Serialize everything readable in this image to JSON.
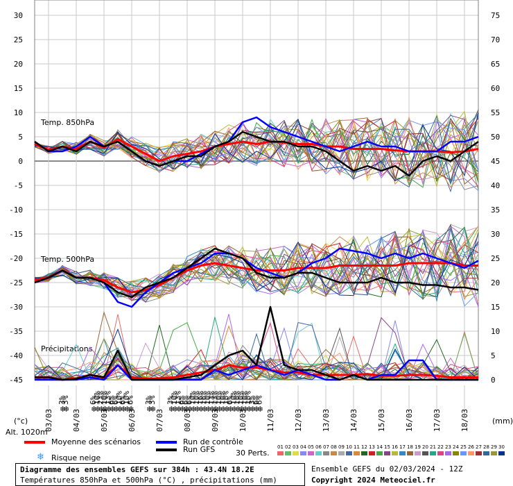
{
  "header": {
    "title_line1": "Diagramme des ensembles GEFS sur 384h : 43.4N 18.2E",
    "title_line2": "Températures 850hPa et 500hPa (°C) , précipitations (mm)",
    "run_info": "Ensemble GEFS du 02/03/2024 - 12Z",
    "copyright": "Copyright 2024 Meteociel.fr"
  },
  "labels": {
    "temp850": "Temp. 850hPa",
    "temp500": "Temp. 500hPa",
    "precip": "Précipitations",
    "unit_left": "(°c)",
    "unit_right": "(mm)",
    "altitude": "Alt. 1020m",
    "perts_label": "30 Perts."
  },
  "legend": {
    "mean": "Moyenne des scénarios",
    "control": "Run de contrôle",
    "gfs": "Run GFS",
    "snow": "Risque neige",
    "mean_color": "#ff0000",
    "control_color": "#0000ff",
    "gfs_color": "#000000"
  },
  "perturbations": {
    "numbers": [
      "01",
      "02",
      "03",
      "04",
      "05",
      "06",
      "07",
      "08",
      "09",
      "10",
      "11",
      "12",
      "13",
      "14",
      "15",
      "16",
      "17",
      "18",
      "19",
      "20",
      "21",
      "22",
      "23",
      "24",
      "25",
      "26",
      "27",
      "28",
      "29",
      "30"
    ],
    "colors": [
      "#ee6666",
      "#66bb66",
      "#dddd44",
      "#8888ee",
      "#cc66cc",
      "#66cccc",
      "#888888",
      "#cc8844",
      "#aaaaaa",
      "#4466aa",
      "#dd8833",
      "#226622",
      "#cc2222",
      "#44aa44",
      "#884488",
      "#bbbb33",
      "#3388cc",
      "#996633",
      "#cc99cc",
      "#555555",
      "#22aa88",
      "#dd4488",
      "#aa66ee",
      "#888800",
      "#6699ff",
      "#ff9966",
      "#993333",
      "#336699",
      "#999933",
      "#003399"
    ]
  },
  "axes": {
    "left_ticks": [
      "30",
      "25",
      "20",
      "15",
      "10",
      "5",
      "0",
      "-5",
      "-10",
      "-15",
      "-20",
      "-25",
      "-30",
      "-35",
      "-40",
      "-45"
    ],
    "right_ticks": [
      "75",
      "70",
      "65",
      "60",
      "55",
      "50",
      "45",
      "40",
      "35",
      "30",
      "25",
      "20",
      "15",
      "10",
      "5",
      "0"
    ],
    "dates": [
      "03/03",
      "04/03",
      "05/03",
      "06/03",
      "07/03",
      "08/03",
      "09/03",
      "10/03",
      "11/03",
      "12/03",
      "13/03",
      "14/03",
      "15/03",
      "16/03",
      "17/03",
      "18/03"
    ]
  },
  "snow_risk": {
    "pcts": [
      "3%",
      "3%",
      "6%",
      "10%",
      "23%",
      "10%",
      "13%",
      "6%",
      "6%",
      "10%",
      "6%",
      "10%",
      "6%",
      "3%",
      "3%",
      "3%",
      "10%",
      "13%",
      "6%",
      "6%",
      "6%",
      "10%",
      "10%",
      "16%",
      "16%",
      "10%",
      "13%",
      "13%",
      "10%",
      "10%",
      "10%",
      "6%",
      "10%",
      "10%",
      "10%",
      "10%",
      "10%",
      "3%",
      "6%",
      "6%"
    ]
  },
  "chart_data": {
    "type": "line",
    "title": "Diagramme des ensembles GEFS sur 384h : 43.4N 18.2E",
    "x_dates": [
      "03/03",
      "04/03",
      "05/03",
      "06/03",
      "07/03",
      "08/03",
      "09/03",
      "10/03",
      "11/03",
      "12/03",
      "13/03",
      "14/03",
      "15/03",
      "16/03",
      "17/03",
      "18/03"
    ],
    "left_axis": {
      "label": "(°c)",
      "range": [
        -45,
        30
      ]
    },
    "right_axis": {
      "label": "(mm)",
      "range": [
        0,
        75
      ]
    },
    "x_hours_range": [
      0,
      384
    ],
    "grid": true,
    "series": [
      {
        "name": "Moyenne des scénarios",
        "group": "Temp. 850hPa",
        "x_hours": [
          0,
          12,
          24,
          36,
          48,
          60,
          72,
          84,
          96,
          108,
          120,
          132,
          144,
          156,
          168,
          180,
          192,
          204,
          216,
          228,
          240,
          252,
          264,
          276,
          288,
          300,
          312,
          324,
          336,
          348,
          360,
          372,
          384
        ],
        "values": [
          3.5,
          2.3,
          3,
          2.5,
          4,
          2.8,
          4.5,
          3,
          1.5,
          0,
          1,
          1.5,
          2,
          3,
          3.5,
          4,
          3.5,
          4,
          3.8,
          3.5,
          3.5,
          3,
          3,
          2.5,
          2.5,
          2.5,
          2.2,
          2,
          2,
          2,
          1.8,
          2,
          2.5
        ]
      },
      {
        "name": "Run de contrôle",
        "group": "Temp. 850hPa",
        "x_hours": [
          0,
          12,
          24,
          36,
          48,
          60,
          72,
          84,
          96,
          108,
          120,
          132,
          144,
          156,
          168,
          180,
          192,
          204,
          216,
          228,
          240,
          252,
          264,
          276,
          288,
          300,
          312,
          324,
          336,
          348,
          360,
          372,
          384
        ],
        "values": [
          4,
          2,
          2,
          3,
          5,
          3,
          4,
          2,
          0,
          -1,
          0,
          0,
          1.5,
          3,
          4,
          8,
          9,
          7,
          6,
          5,
          4,
          3,
          2,
          3,
          4,
          3,
          3,
          2,
          2,
          2,
          4,
          4,
          5
        ]
      },
      {
        "name": "Run GFS",
        "group": "Temp. 850hPa",
        "x_hours": [
          0,
          12,
          24,
          36,
          48,
          60,
          72,
          84,
          96,
          108,
          120,
          132,
          144,
          156,
          168,
          180,
          192,
          204,
          216,
          228,
          240,
          252,
          264,
          276,
          288,
          300,
          312,
          324,
          336,
          348,
          360,
          372,
          384
        ],
        "values": [
          4,
          2,
          3,
          2,
          4,
          3,
          4,
          2,
          0,
          -1,
          0,
          1,
          1,
          3,
          4,
          6,
          5,
          4,
          4,
          3,
          3,
          2,
          0,
          -2,
          -1,
          -2,
          -1,
          -3,
          0,
          1,
          0,
          2,
          4
        ]
      },
      {
        "name": "Moyenne des scénarios",
        "group": "Temp. 500hPa",
        "x_hours": [
          0,
          12,
          24,
          36,
          48,
          60,
          72,
          84,
          96,
          108,
          120,
          132,
          144,
          156,
          168,
          180,
          192,
          204,
          216,
          228,
          240,
          252,
          264,
          276,
          288,
          300,
          312,
          324,
          336,
          348,
          360,
          372,
          384
        ],
        "values": [
          -24.5,
          -24,
          -22.5,
          -24,
          -24,
          -24.5,
          -26,
          -27,
          -26.5,
          -25.5,
          -24,
          -22.5,
          -21.5,
          -21,
          -21.5,
          -22,
          -22.5,
          -22.5,
          -22.5,
          -22,
          -22,
          -22,
          -21.5,
          -21.5,
          -21.5,
          -21.5,
          -21.5,
          -21,
          -21,
          -21,
          -21,
          -21.5,
          -21.5
        ]
      },
      {
        "name": "Run de contrôle",
        "group": "Temp. 500hPa",
        "x_hours": [
          0,
          12,
          24,
          36,
          48,
          60,
          72,
          84,
          96,
          108,
          120,
          132,
          144,
          156,
          168,
          180,
          192,
          204,
          216,
          228,
          240,
          252,
          264,
          276,
          288,
          300,
          312,
          324,
          336,
          348,
          360,
          372,
          384
        ],
        "values": [
          -25,
          -24,
          -22.5,
          -24,
          -24,
          -25,
          -29,
          -30,
          -27,
          -25,
          -23,
          -22,
          -21,
          -19,
          -19,
          -20,
          -22,
          -23,
          -24,
          -23,
          -21,
          -20,
          -18,
          -18.5,
          -19,
          -20,
          -19,
          -20,
          -19,
          -20,
          -21,
          -22,
          -20.5
        ]
      },
      {
        "name": "Run GFS",
        "group": "Temp. 500hPa",
        "x_hours": [
          0,
          12,
          24,
          36,
          48,
          60,
          72,
          84,
          96,
          108,
          120,
          132,
          144,
          156,
          168,
          180,
          192,
          204,
          216,
          228,
          240,
          252,
          264,
          276,
          288,
          300,
          312,
          324,
          336,
          348,
          360,
          372,
          384
        ],
        "values": [
          -25,
          -24,
          -22.5,
          -24,
          -24,
          -25,
          -27,
          -28,
          -26,
          -25,
          -24,
          -22,
          -20,
          -18,
          -19,
          -20,
          -23,
          -24,
          -24,
          -23,
          -23,
          -24,
          -25,
          -25,
          -25,
          -24,
          -25,
          -25,
          -25.5,
          -25.5,
          -26,
          -26,
          -26.5
        ]
      },
      {
        "name": "Moyenne des scénarios",
        "group": "Précipitations",
        "axis": "right",
        "x_hours": [
          0,
          12,
          24,
          36,
          48,
          60,
          72,
          84,
          96,
          108,
          120,
          132,
          144,
          156,
          168,
          180,
          192,
          204,
          216,
          228,
          240,
          252,
          264,
          276,
          288,
          300,
          312,
          324,
          336,
          348,
          360,
          372,
          384
        ],
        "values": [
          0.5,
          0.5,
          0,
          0.3,
          1,
          0.5,
          3,
          0.5,
          0.2,
          0.3,
          0.5,
          1,
          1.5,
          2,
          3,
          2.5,
          2.5,
          2,
          1.5,
          1.5,
          1,
          1,
          1,
          1,
          1.2,
          0.8,
          0.8,
          1,
          1,
          0.8,
          0.5,
          0.5,
          0.5
        ]
      },
      {
        "name": "Run de contrôle",
        "group": "Précipitations",
        "axis": "right",
        "x_hours": [
          0,
          12,
          24,
          36,
          48,
          60,
          72,
          84,
          96,
          108,
          120,
          132,
          144,
          156,
          168,
          180,
          192,
          204,
          216,
          228,
          240,
          252,
          264,
          276,
          288,
          300,
          312,
          324,
          336,
          348,
          360,
          372,
          384
        ],
        "values": [
          0,
          0,
          0,
          0,
          0.5,
          0,
          3,
          0,
          0,
          0,
          0,
          0,
          0,
          2,
          1,
          2,
          3,
          2,
          1,
          2,
          1,
          0,
          0,
          1,
          0,
          1,
          1,
          4,
          4,
          0,
          0,
          0,
          0
        ]
      },
      {
        "name": "Run GFS",
        "group": "Précipitations",
        "axis": "right",
        "x_hours": [
          0,
          12,
          24,
          36,
          48,
          60,
          72,
          84,
          96,
          108,
          120,
          132,
          144,
          156,
          168,
          180,
          192,
          204,
          216,
          228,
          240,
          252,
          264,
          276,
          288,
          300,
          312,
          324,
          336,
          348,
          360,
          372,
          384
        ],
        "values": [
          0.5,
          0.5,
          0,
          0.2,
          1,
          0.5,
          6,
          0,
          0,
          0,
          0,
          0.5,
          1,
          3,
          5,
          6,
          3,
          15,
          3,
          2,
          2,
          1,
          0,
          1,
          0,
          0,
          0,
          0,
          0,
          0,
          0,
          0,
          0
        ]
      }
    ]
  }
}
